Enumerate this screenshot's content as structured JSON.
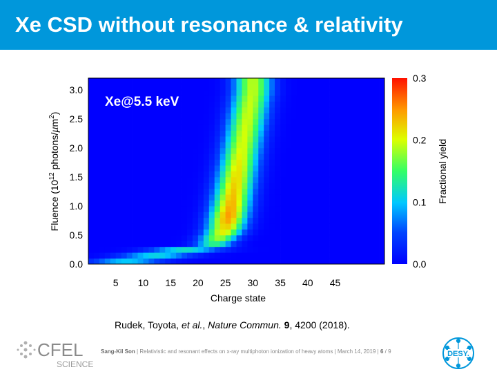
{
  "header": {
    "title": "Xe CSD without resonance & relativity"
  },
  "chart_data": {
    "type": "heatmap",
    "annotation": "Xe@5.5 keV",
    "xlabel": "Charge state",
    "ylabel": "Fluence (10^12 photons/µm^2)",
    "xlim": [
      0,
      54
    ],
    "ylim": [
      0,
      3.2
    ],
    "x_ticks": [
      "5",
      "10",
      "15",
      "20",
      "25",
      "30",
      "35",
      "40",
      "45"
    ],
    "y_ticks": [
      "0.0",
      "0.5",
      "1.0",
      "1.5",
      "2.0",
      "2.5",
      "3.0"
    ],
    "colorbar": {
      "label": "Fractional yield",
      "min": 0,
      "max": 0.3,
      "ticks": [
        "0.0",
        "0.1",
        "0.2",
        "0.3"
      ]
    },
    "ridge_center_vs_fluence": [
      {
        "fluence": 0.05,
        "charge": 7
      },
      {
        "fluence": 0.2,
        "charge": 15
      },
      {
        "fluence": 0.35,
        "charge": 23
      },
      {
        "fluence": 0.6,
        "charge": 25
      },
      {
        "fluence": 1.0,
        "charge": 26
      },
      {
        "fluence": 1.5,
        "charge": 27
      },
      {
        "fluence": 2.0,
        "charge": 28
      },
      {
        "fluence": 2.5,
        "charge": 29
      },
      {
        "fluence": 3.0,
        "charge": 30
      }
    ],
    "peak_yield_vs_fluence": [
      {
        "fluence": 0.05,
        "yield": 0.1
      },
      {
        "fluence": 0.3,
        "yield": 0.12
      },
      {
        "fluence": 0.5,
        "yield": 0.2
      },
      {
        "fluence": 0.8,
        "yield": 0.25
      },
      {
        "fluence": 1.2,
        "yield": 0.23
      },
      {
        "fluence": 2.0,
        "yield": 0.2
      },
      {
        "fluence": 3.2,
        "yield": 0.19
      }
    ]
  },
  "citation": {
    "authors": "Rudek, Toyota, ",
    "etal": "et al.",
    "journal": "Nature Commun.",
    "volume": "9",
    "rest": ", 4200 (2018)."
  },
  "footer": {
    "author": "Sang-Kil Son",
    "text": "| Relativistic and resonant effects on x-ray multiphoton ionization of heavy atoms | March 14, 2019 |",
    "page": "6",
    "total": "/ 9"
  },
  "logos": {
    "left_text": "CFEL",
    "left_sub": "SCIENCE",
    "right_text": "DESY."
  }
}
